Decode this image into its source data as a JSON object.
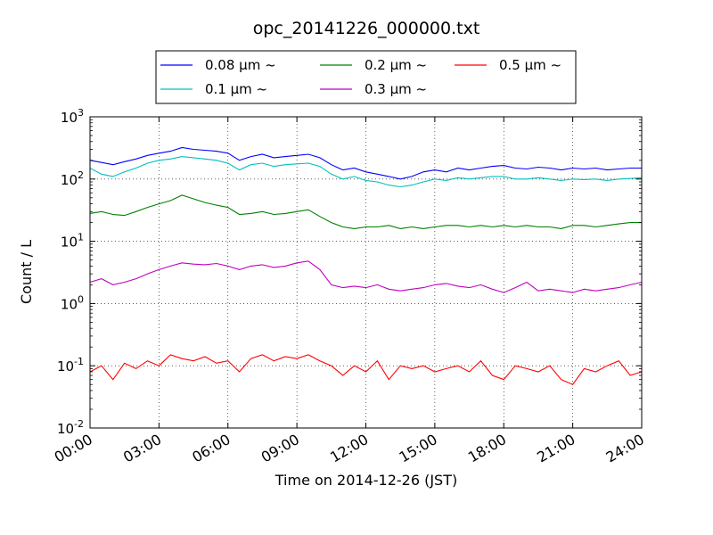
{
  "chart_data": {
    "type": "line",
    "title": "opc_20141226_000000.txt",
    "xlabel": "Time on 2014-12-26 (JST)",
    "ylabel": "Count / L",
    "yscale": "log",
    "ylim": [
      0.01,
      1000
    ],
    "xlim_hours": [
      0,
      24
    ],
    "grid": true,
    "legend_position": "top (above plot, 3 columns)",
    "x_ticks": [
      {
        "hour": 0,
        "label": "00:00"
      },
      {
        "hour": 3,
        "label": "03:00"
      },
      {
        "hour": 6,
        "label": "06:00"
      },
      {
        "hour": 9,
        "label": "09:00"
      },
      {
        "hour": 12,
        "label": "12:00"
      },
      {
        "hour": 15,
        "label": "15:00"
      },
      {
        "hour": 18,
        "label": "18:00"
      },
      {
        "hour": 21,
        "label": "21:00"
      },
      {
        "hour": 24,
        "label": "24:00"
      }
    ],
    "y_ticks": [
      {
        "value": 0.01,
        "base": "10",
        "exp": "-2"
      },
      {
        "value": 0.1,
        "base": "10",
        "exp": "-1"
      },
      {
        "value": 1,
        "base": "10",
        "exp": "0"
      },
      {
        "value": 10,
        "base": "10",
        "exp": "1"
      },
      {
        "value": 100,
        "base": "10",
        "exp": "2"
      },
      {
        "value": 1000,
        "base": "10",
        "exp": "3"
      }
    ],
    "x_hours": [
      0,
      0.5,
      1,
      1.5,
      2,
      2.5,
      3,
      3.5,
      4,
      4.5,
      5,
      5.5,
      6,
      6.5,
      7,
      7.5,
      8,
      8.5,
      9,
      9.5,
      10,
      10.5,
      11,
      11.5,
      12,
      12.5,
      13,
      13.5,
      14,
      14.5,
      15,
      15.5,
      16,
      16.5,
      17,
      17.5,
      18,
      18.5,
      19,
      19.5,
      20,
      20.5,
      21,
      21.5,
      22,
      22.5,
      23,
      23.5,
      24
    ],
    "series": [
      {
        "name": "0.08 μm ~",
        "color": "#0000ff",
        "values": [
          200,
          185,
          170,
          190,
          210,
          240,
          260,
          280,
          320,
          300,
          290,
          280,
          260,
          200,
          230,
          250,
          220,
          230,
          240,
          250,
          220,
          170,
          140,
          150,
          130,
          120,
          110,
          100,
          110,
          130,
          140,
          130,
          150,
          140,
          150,
          160,
          165,
          150,
          145,
          155,
          150,
          140,
          150,
          145,
          150,
          140,
          145,
          150,
          150
        ]
      },
      {
        "name": "0.1 μm ~",
        "color": "#00bfbf",
        "values": [
          150,
          120,
          110,
          130,
          150,
          180,
          200,
          210,
          230,
          220,
          210,
          200,
          180,
          140,
          170,
          180,
          160,
          170,
          175,
          180,
          160,
          120,
          100,
          110,
          95,
          90,
          80,
          75,
          80,
          90,
          100,
          95,
          105,
          100,
          105,
          110,
          110,
          100,
          100,
          105,
          100,
          95,
          100,
          98,
          100,
          95,
          100,
          102,
          105
        ]
      },
      {
        "name": "0.2 μm ~",
        "color": "#008000",
        "values": [
          28,
          30,
          27,
          26,
          30,
          35,
          40,
          45,
          55,
          48,
          42,
          38,
          35,
          27,
          28,
          30,
          27,
          28,
          30,
          32,
          25,
          20,
          17,
          16,
          17,
          17,
          18,
          16,
          17,
          16,
          17,
          18,
          18,
          17,
          18,
          17,
          18,
          17,
          18,
          17,
          17,
          16,
          18,
          18,
          17,
          18,
          19,
          20,
          20
        ]
      },
      {
        "name": "0.3 μm ~",
        "color": "#bf00bf",
        "values": [
          2.2,
          2.5,
          2.0,
          2.2,
          2.5,
          3.0,
          3.5,
          4.0,
          4.5,
          4.3,
          4.2,
          4.4,
          4.0,
          3.5,
          4.0,
          4.2,
          3.8,
          4.0,
          4.5,
          4.8,
          3.5,
          2.0,
          1.8,
          1.9,
          1.8,
          2.0,
          1.7,
          1.6,
          1.7,
          1.8,
          2.0,
          2.1,
          1.9,
          1.8,
          2.0,
          1.7,
          1.5,
          1.8,
          2.2,
          1.6,
          1.7,
          1.6,
          1.5,
          1.7,
          1.6,
          1.7,
          1.8,
          2.0,
          2.2
        ]
      },
      {
        "name": "0.5 μm ~",
        "color": "#ff0000",
        "values": [
          0.08,
          0.1,
          0.06,
          0.11,
          0.09,
          0.12,
          0.1,
          0.15,
          0.13,
          0.12,
          0.14,
          0.11,
          0.12,
          0.08,
          0.13,
          0.15,
          0.12,
          0.14,
          0.13,
          0.15,
          0.12,
          0.1,
          0.07,
          0.1,
          0.08,
          0.12,
          0.06,
          0.1,
          0.09,
          0.1,
          0.08,
          0.09,
          0.1,
          0.08,
          0.12,
          0.07,
          0.06,
          0.1,
          0.09,
          0.08,
          0.1,
          0.06,
          0.05,
          0.09,
          0.08,
          0.1,
          0.12,
          0.07,
          0.08
        ]
      }
    ]
  }
}
